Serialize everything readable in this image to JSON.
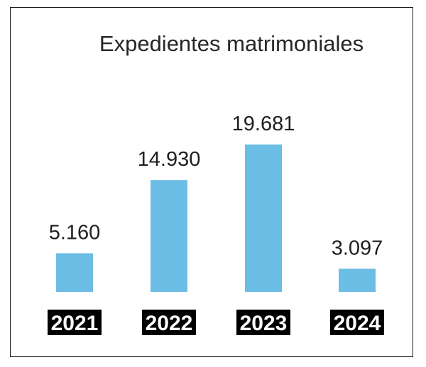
{
  "chart_data": {
    "type": "bar",
    "title": "Expedientes matrimoniales",
    "categories": [
      "2021",
      "2022",
      "2023",
      "2024"
    ],
    "values": [
      5160,
      14930,
      19681,
      3097
    ],
    "value_labels": [
      "5.160",
      "14.930",
      "19.681",
      "3.097"
    ],
    "xlabel": "",
    "ylabel": "",
    "ylim": [
      0,
      21000
    ],
    "grid": false,
    "legend": "none",
    "bar_color": "#6cbde5",
    "category_label_bg": "#000000",
    "category_label_color": "#ffffff"
  }
}
